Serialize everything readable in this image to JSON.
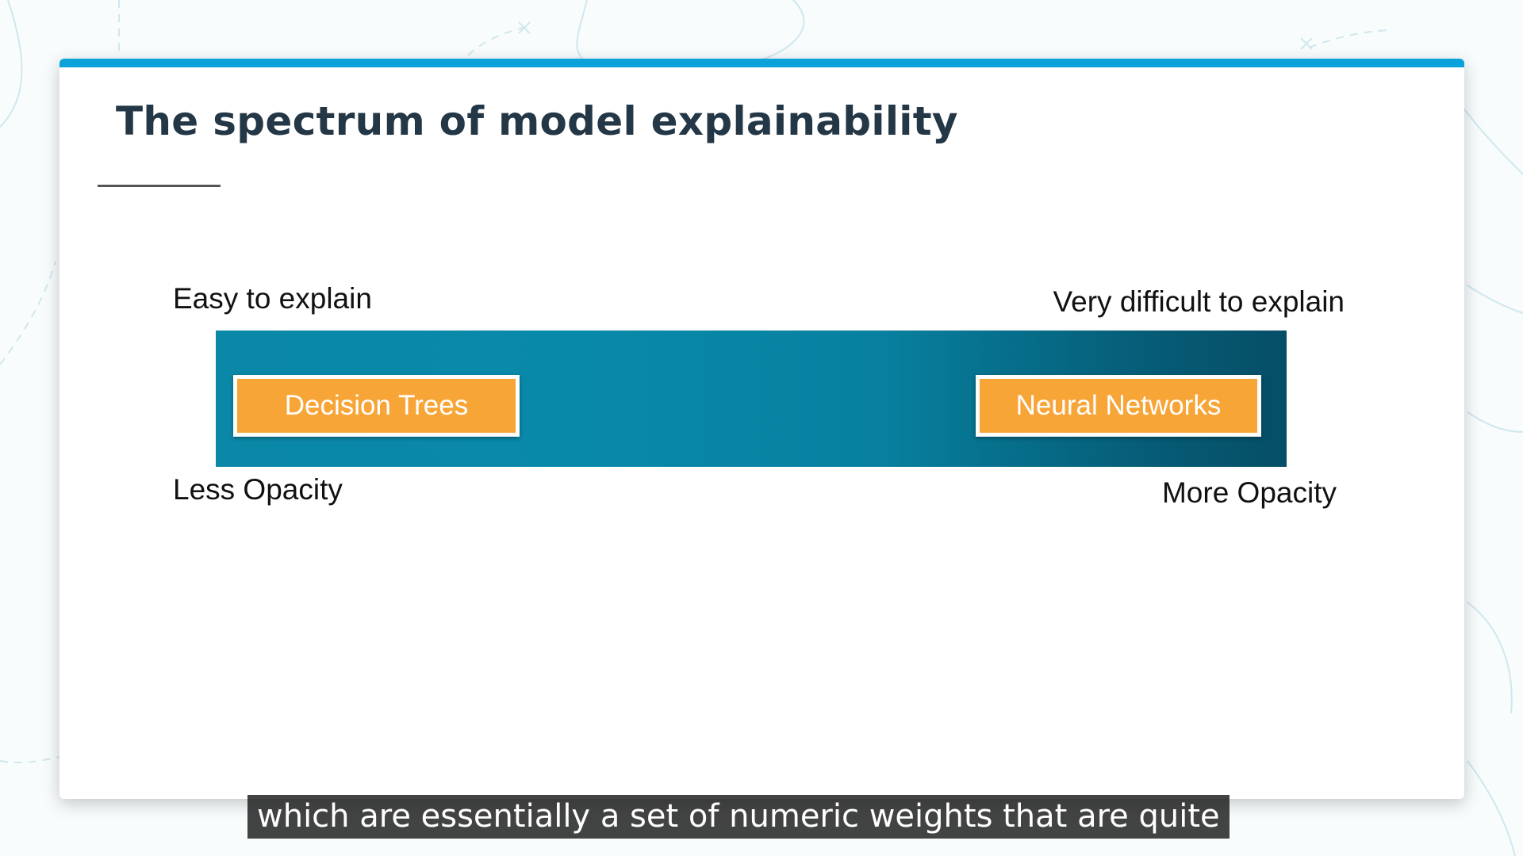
{
  "slide": {
    "title": "The spectrum of model explainability",
    "accent_color": "#0aa2d8",
    "spectrum": {
      "left_top_label": "Easy to explain",
      "right_top_label": "Very difficult to explain",
      "left_bottom_label": "Less Opacity",
      "right_bottom_label": "More Opacity",
      "bar_color_start": "#0b88a8",
      "bar_color_end": "#054e66",
      "models": [
        {
          "label": "Decision Trees",
          "color": "#f8a538"
        },
        {
          "label": "Neural Networks",
          "color": "#f8a538"
        }
      ]
    }
  },
  "caption": {
    "text": "which are essentially a set of numeric weights that are quite"
  }
}
